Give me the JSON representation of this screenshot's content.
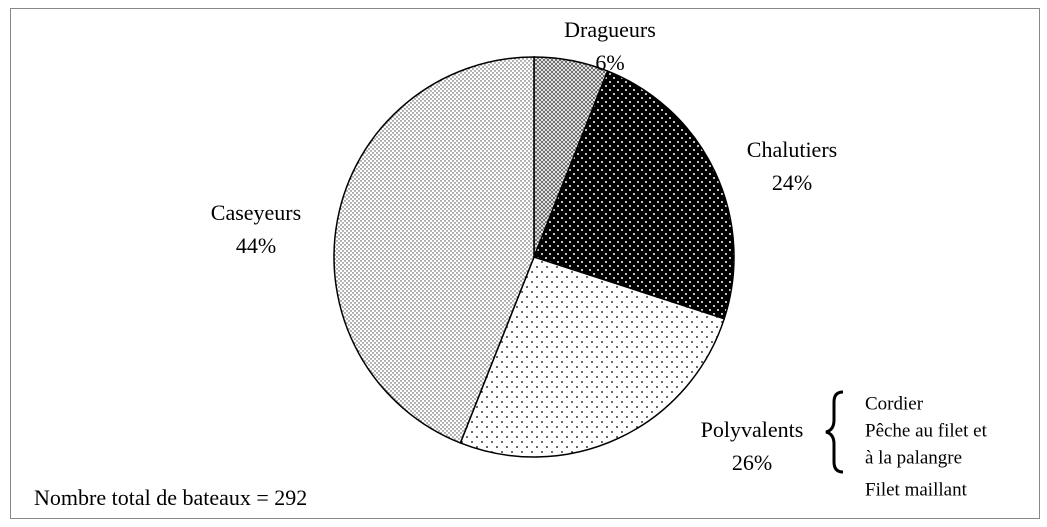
{
  "chart_data": {
    "type": "pie",
    "categories": [
      "Dragueurs",
      "Chalutiers",
      "Polyvalents",
      "Caseyeurs"
    ],
    "values": [
      6,
      24,
      26,
      44
    ],
    "value_labels": [
      "6%",
      "24%",
      "26%",
      "44%"
    ],
    "annotation": "Nombre total de bateaux = 292",
    "note": [
      "Cordier",
      "Pêche au filet et",
      "à la palangre",
      "Filet maillant"
    ]
  }
}
